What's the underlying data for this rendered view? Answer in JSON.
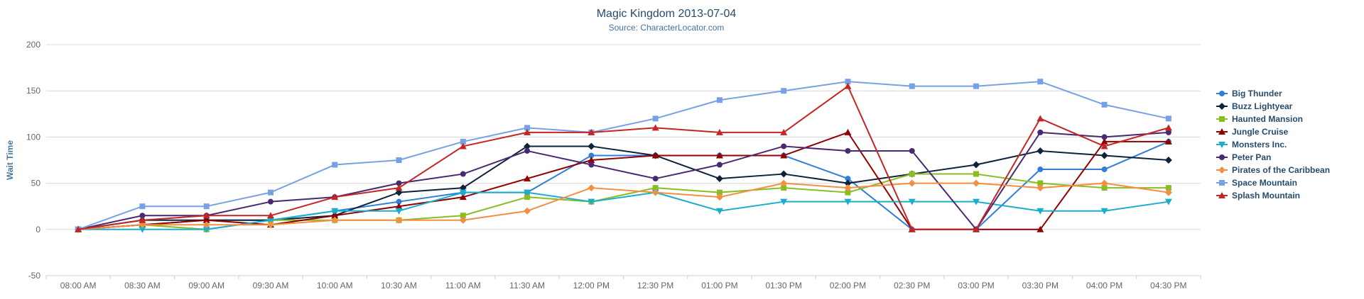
{
  "chart_data": {
    "type": "line",
    "title": "Magic Kingdom 2013-07-04",
    "subtitle": "Source: CharacterLocator.com",
    "xlabel": "",
    "ylabel": "Wait Time",
    "ylim": [
      -50,
      200
    ],
    "yticks": [
      -50,
      0,
      50,
      100,
      150,
      200
    ],
    "grid": true,
    "legend_position": "right",
    "categories": [
      "08:00 AM",
      "08:30 AM",
      "09:00 AM",
      "09:30 AM",
      "10:00 AM",
      "10:30 AM",
      "11:00 AM",
      "11:30 AM",
      "12:00 PM",
      "12:30 PM",
      "01:00 PM",
      "01:30 PM",
      "02:00 PM",
      "02:30 PM",
      "03:00 PM",
      "03:30 PM",
      "04:00 PM",
      "04:30 PM"
    ],
    "series": [
      {
        "name": "Big Thunder",
        "color": "#2f7ed8",
        "marker": "circle",
        "values": [
          0,
          5,
          10,
          10,
          20,
          30,
          40,
          40,
          80,
          80,
          80,
          80,
          55,
          0,
          0,
          65,
          65,
          95
        ]
      },
      {
        "name": "Buzz Lightyear",
        "color": "#0d233a",
        "marker": "diamond",
        "values": [
          0,
          10,
          10,
          10,
          15,
          40,
          45,
          90,
          90,
          80,
          55,
          60,
          50,
          60,
          70,
          85,
          80,
          75
        ]
      },
      {
        "name": "Haunted Mansion",
        "color": "#8bbc21",
        "marker": "square",
        "values": [
          0,
          5,
          0,
          10,
          10,
          10,
          15,
          35,
          30,
          45,
          40,
          45,
          40,
          60,
          60,
          50,
          45,
          45
        ]
      },
      {
        "name": "Jungle Cruise",
        "color": "#910000",
        "marker": "triangle",
        "values": [
          0,
          5,
          10,
          5,
          15,
          25,
          35,
          55,
          75,
          80,
          80,
          80,
          105,
          0,
          0,
          0,
          95,
          95
        ]
      },
      {
        "name": "Monsters Inc.",
        "color": "#1aadce",
        "marker": "triangle-down",
        "values": [
          0,
          0,
          0,
          10,
          20,
          20,
          40,
          40,
          30,
          40,
          20,
          30,
          30,
          30,
          30,
          20,
          20,
          30
        ]
      },
      {
        "name": "Peter Pan",
        "color": "#492970",
        "marker": "circle",
        "values": [
          0,
          15,
          15,
          30,
          35,
          50,
          60,
          85,
          70,
          55,
          70,
          90,
          85,
          85,
          0,
          105,
          100,
          105
        ]
      },
      {
        "name": "Pirates of the Caribbean",
        "color": "#f28f43",
        "marker": "diamond",
        "values": [
          0,
          5,
          5,
          5,
          10,
          10,
          10,
          20,
          45,
          40,
          35,
          50,
          45,
          50,
          50,
          45,
          50,
          40
        ]
      },
      {
        "name": "Space Mountain",
        "color": "#77a1e5",
        "marker": "square",
        "values": [
          0,
          25,
          25,
          40,
          70,
          75,
          95,
          110,
          105,
          120,
          140,
          150,
          160,
          155,
          155,
          160,
          135,
          120
        ]
      },
      {
        "name": "Splash Mountain",
        "color": "#c42525",
        "marker": "triangle",
        "values": [
          0,
          10,
          15,
          15,
          35,
          45,
          90,
          105,
          105,
          110,
          105,
          105,
          155,
          0,
          0,
          120,
          90,
          110
        ]
      }
    ]
  }
}
